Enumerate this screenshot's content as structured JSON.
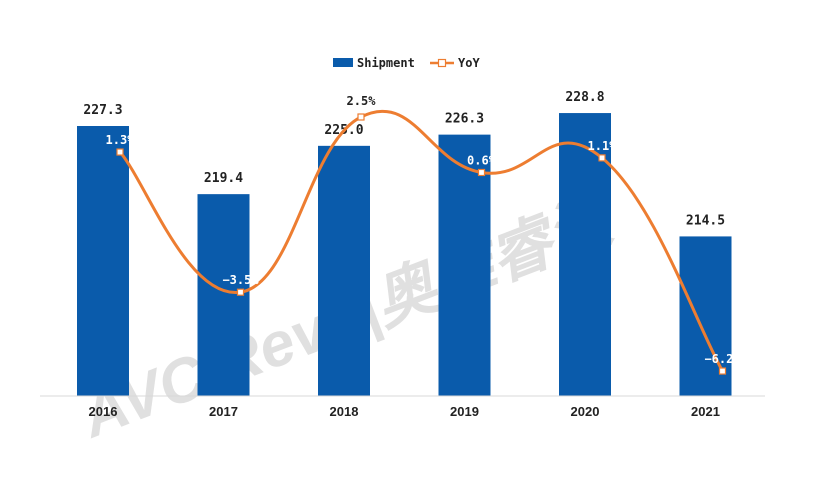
{
  "chart_data": {
    "type": "bar",
    "categories": [
      "2016",
      "2017",
      "2018",
      "2019",
      "2020",
      "2021"
    ],
    "series": [
      {
        "name": "Shipment",
        "type": "bar",
        "values": [
          227.3,
          219.4,
          225.0,
          226.3,
          228.8,
          214.5
        ],
        "labels": [
          "227.3",
          "219.4",
          "225.0",
          "226.3",
          "228.8",
          "214.5"
        ],
        "color": "#0a5bab"
      },
      {
        "name": "YoY",
        "type": "line",
        "values": [
          1.3,
          -3.5,
          2.5,
          0.6,
          1.1,
          -6.2
        ],
        "labels": [
          "1.3%",
          "-3.5%",
          "2.5%",
          "0.6%",
          "1.1%",
          "-6.2%"
        ],
        "color": "#ed7d31"
      }
    ],
    "title": "",
    "xlabel": "",
    "ylabel": "",
    "legend": "top-center",
    "grid": false,
    "watermark": "AVC Revo|奥维睿沃"
  }
}
